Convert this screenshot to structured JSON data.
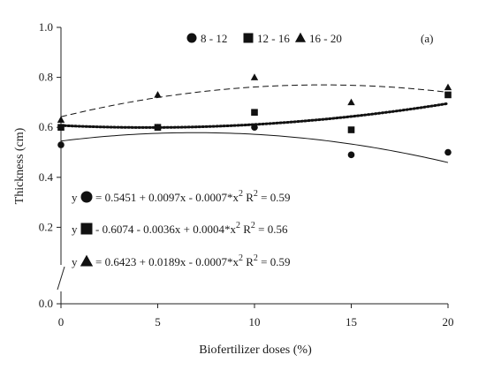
{
  "chart_data": {
    "type": "scatter",
    "panel_label": "(a)",
    "xlabel": "Biofertilizer doses (%)",
    "ylabel": "Thickness (cm)",
    "x_ticks": [
      "0",
      "5",
      "10",
      "15",
      "20"
    ],
    "y_ticks": [
      "0.0",
      "0.2",
      "0.4",
      "0.6",
      "0.8",
      "1.0"
    ],
    "xlim": [
      0,
      20
    ],
    "ylim": [
      0,
      1.0
    ],
    "axis_break": true,
    "grid": false,
    "legend_position": "top-center",
    "x": [
      0,
      5,
      10,
      15,
      20
    ],
    "series": [
      {
        "name": "8 - 12",
        "marker": "circle",
        "values": [
          0.53,
          0.6,
          0.6,
          0.49,
          0.5
        ],
        "fit": {
          "a": 0.5451,
          "b": 0.0097,
          "c": -0.0007,
          "line_style": "solid"
        },
        "equation": {
          "prefix": "y",
          "text": "= 0.5451 + 0.0097x - 0.0007*x",
          "exp": "2",
          "r": " R",
          "r_exp": "2",
          "r_val": " = 0.59"
        }
      },
      {
        "name": "12 - 16",
        "marker": "square",
        "values": [
          0.6,
          0.6,
          0.66,
          0.59,
          0.73
        ],
        "fit": {
          "a": 0.6074,
          "b": -0.0036,
          "c": 0.0004,
          "line_style": "dotted"
        },
        "equation": {
          "prefix": "y",
          "text": "- 0.6074 - 0.0036x + 0.0004*x",
          "exp": "2",
          "r": " R",
          "r_exp": "2",
          "r_val": " = 0.56"
        }
      },
      {
        "name": "16 - 20",
        "marker": "triangle",
        "values": [
          0.63,
          0.73,
          0.8,
          0.7,
          0.76
        ],
        "fit": {
          "a": 0.6423,
          "b": 0.0189,
          "c": -0.0007,
          "line_style": "dashed"
        },
        "equation": {
          "prefix": "y",
          "text": "= 0.6423 + 0.0189x - 0.0007*x",
          "exp": "2",
          "r": " R",
          "r_exp": "2",
          "r_val": " = 0.59"
        }
      }
    ]
  }
}
